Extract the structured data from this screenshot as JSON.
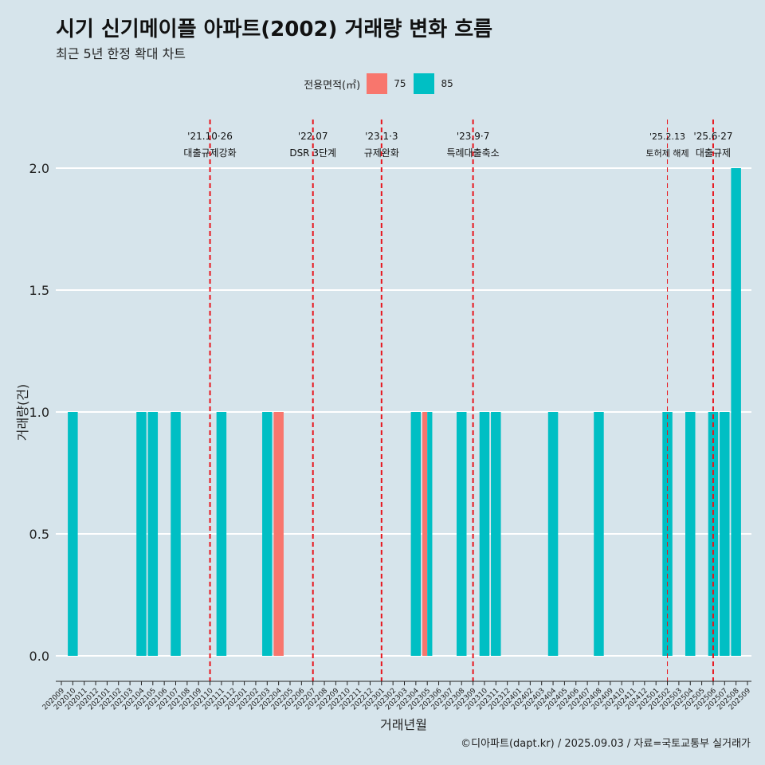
{
  "title": "시기 신기메이플 아파트(2002) 거래량 변화 흐름",
  "subtitle": "최근 5년 한정 확대 차트",
  "legend": {
    "title": "전용면적(㎡)",
    "items": [
      {
        "label": "75",
        "color": "#f8766d"
      },
      {
        "label": "85",
        "color": "#00bfc4"
      }
    ]
  },
  "caption": "©디아파트(dapt.kr) / 2025.09.03 / 자료=국토교통부 실거래가",
  "chart_data": {
    "type": "bar",
    "xlabel": "거래년월",
    "ylabel": "거래량(건)",
    "ylim": [
      0,
      2
    ],
    "yticks": [
      "0.0",
      "0.5",
      "1.0",
      "1.5",
      "2.0"
    ],
    "grid": true,
    "legend_position": "top",
    "categories": [
      "202009",
      "202010",
      "202011",
      "202012",
      "202101",
      "202102",
      "202103",
      "202104",
      "202105",
      "202106",
      "202107",
      "202108",
      "202109",
      "202110",
      "202111",
      "202112",
      "202201",
      "202202",
      "202203",
      "202204",
      "202205",
      "202206",
      "202207",
      "202208",
      "202209",
      "202210",
      "202211",
      "202212",
      "202301",
      "202302",
      "202303",
      "202304",
      "202305",
      "202306",
      "202307",
      "202308",
      "202309",
      "202310",
      "202311",
      "202312",
      "202401",
      "202402",
      "202403",
      "202404",
      "202405",
      "202406",
      "202407",
      "202408",
      "202409",
      "202410",
      "202411",
      "202412",
      "202501",
      "202502",
      "202503",
      "202504",
      "202505",
      "202506",
      "202507",
      "202508",
      "202509"
    ],
    "series": [
      {
        "name": "75",
        "color": "#f8766d",
        "values": [
          0,
          0,
          0,
          0,
          0,
          0,
          0,
          0,
          0,
          0,
          0,
          0,
          0,
          0,
          0,
          0,
          0,
          0,
          0,
          1,
          0,
          0,
          0,
          0,
          0,
          0,
          0,
          0,
          0,
          0,
          0,
          0,
          1,
          0,
          0,
          0,
          0,
          0,
          0,
          0,
          0,
          0,
          0,
          0,
          0,
          0,
          0,
          0,
          0,
          0,
          0,
          0,
          0,
          0,
          0,
          0,
          0,
          0,
          0,
          0,
          0
        ]
      },
      {
        "name": "85",
        "color": "#00bfc4",
        "values": [
          0,
          1,
          0,
          0,
          0,
          0,
          0,
          1,
          1,
          0,
          1,
          0,
          0,
          0,
          1,
          0,
          0,
          0,
          1,
          0,
          0,
          0,
          0,
          0,
          0,
          0,
          0,
          0,
          0,
          0,
          0,
          1,
          1,
          0,
          0,
          1,
          0,
          1,
          1,
          0,
          0,
          0,
          0,
          1,
          0,
          0,
          0,
          1,
          0,
          0,
          0,
          0,
          0,
          1,
          0,
          1,
          0,
          1,
          1,
          2,
          0
        ]
      }
    ],
    "events": [
      {
        "date": "'21.10·26",
        "label": "대출규제강화",
        "month": "202110",
        "style": "bold"
      },
      {
        "date": "'22.07",
        "label": "DSR 3단계",
        "month": "202207",
        "style": "bold"
      },
      {
        "date": "'23.1·3",
        "label": "규제완화",
        "month": "202301",
        "style": "bold"
      },
      {
        "date": "'23.9·7",
        "label": "특례대출축소",
        "month": "202309",
        "style": "bold"
      },
      {
        "date": "'25.2.13",
        "label": "토허제 해제",
        "month": "202502",
        "style": "thin"
      },
      {
        "date": "'25.6·27",
        "label": "대출규제",
        "month": "202506",
        "style": "bold"
      }
    ]
  }
}
